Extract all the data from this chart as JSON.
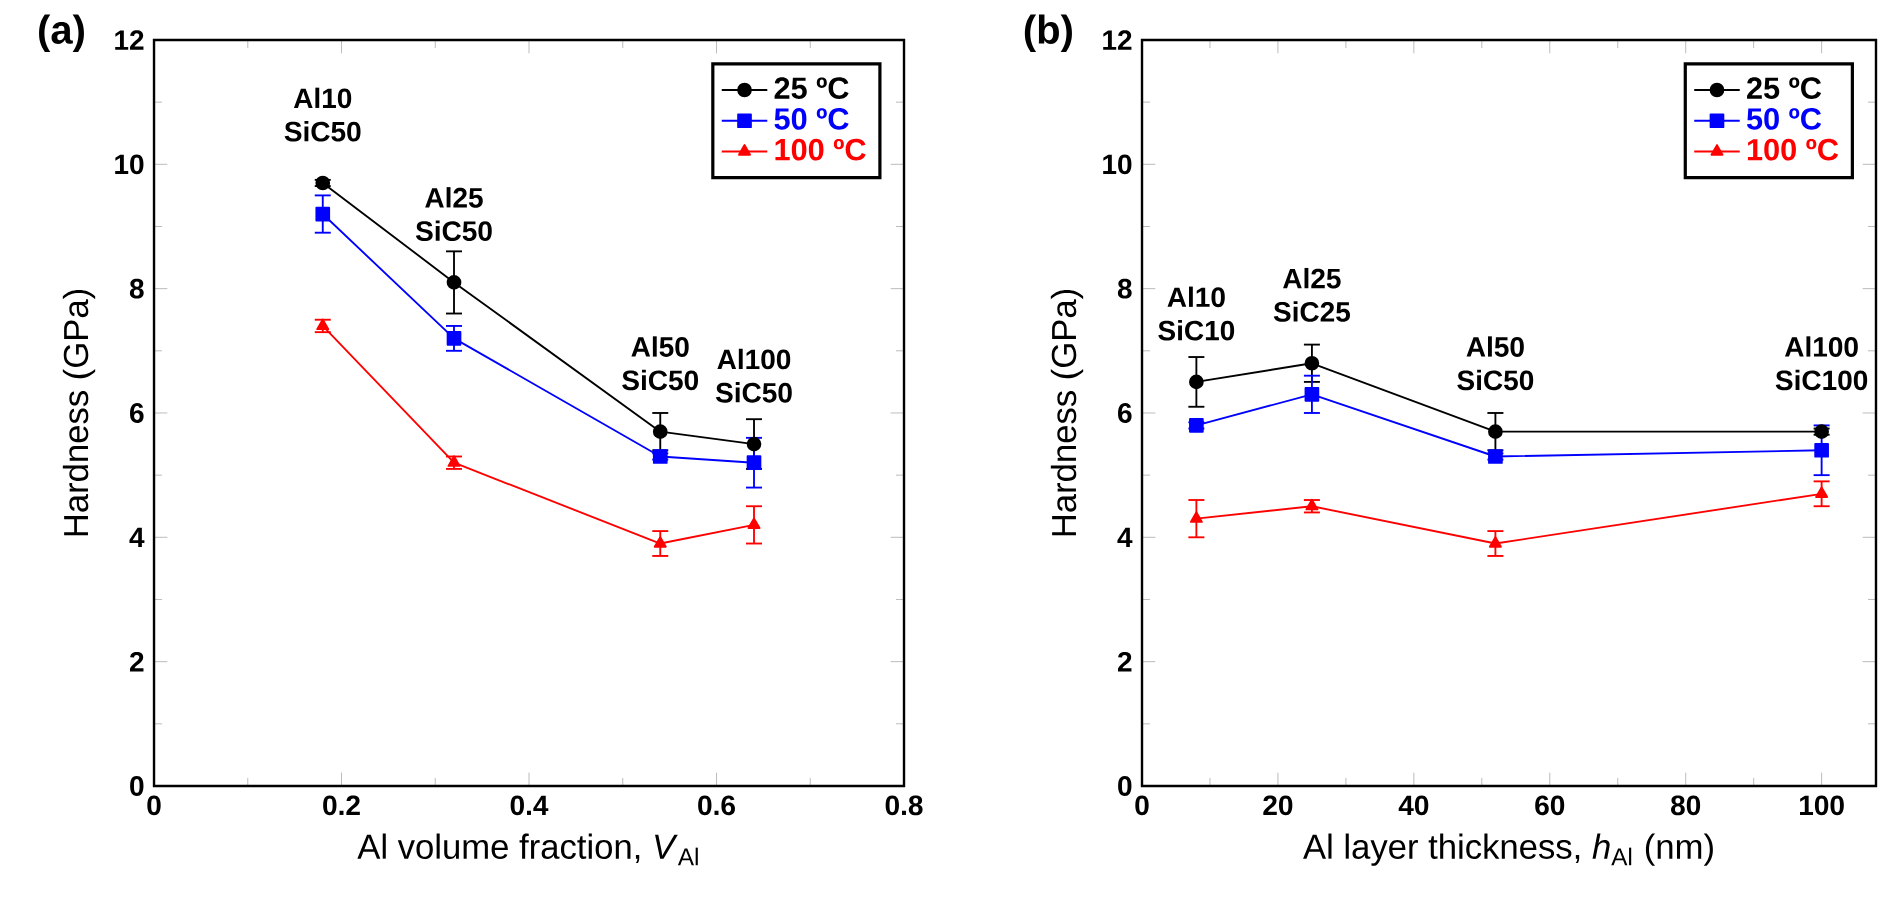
{
  "chart_data": [
    {
      "type": "line",
      "title": "(a)",
      "xlabel": "Al volume fraction, *V*$_{Al}$",
      "ylabel": "Hardness (GPa)",
      "x": [
        0.18,
        0.32,
        0.54,
        0.64
      ],
      "series": [
        {
          "name": "25 ºC",
          "color": "#000000",
          "marker": "circle",
          "values": [
            9.7,
            8.1,
            5.7,
            5.5
          ],
          "errors": [
            0.05,
            0.5,
            0.3,
            0.4
          ]
        },
        {
          "name": "50 ºC",
          "color": "#0000ff",
          "marker": "square",
          "values": [
            9.2,
            7.2,
            5.3,
            5.2
          ],
          "errors": [
            0.3,
            0.2,
            0.05,
            0.4
          ]
        },
        {
          "name": "100 ºC",
          "color": "#ff0000",
          "marker": "triangle",
          "values": [
            7.4,
            5.2,
            3.9,
            4.2
          ],
          "errors": [
            0.1,
            0.1,
            0.2,
            0.3
          ]
        }
      ],
      "xlim": [
        0,
        0.8
      ],
      "xticks": [
        0,
        0.2,
        0.4,
        0.6,
        0.8
      ],
      "ylim": [
        0,
        12
      ],
      "yticks": [
        0,
        2,
        4,
        6,
        8,
        10,
        12
      ],
      "legend": "top right",
      "grid": false,
      "line_style": "solid",
      "annotations": [
        {
          "text": "Al10 SiC50",
          "x": 0.18,
          "y": 9.7
        },
        {
          "text": "Al25 SiC50",
          "x": 0.32,
          "y": 8.1
        },
        {
          "text": "Al50 SiC50",
          "x": 0.54,
          "y": 5.7
        },
        {
          "text": "Al100 SiC50",
          "x": 0.64,
          "y": 5.5
        }
      ]
    },
    {
      "type": "line",
      "title": "(b)",
      "xlabel": "Al layer thickness, *h*$_{Al}$ (nm)",
      "ylabel": "Hardness (GPa)",
      "x": [
        8,
        25,
        52,
        100
      ],
      "series": [
        {
          "name": "25 ºC",
          "color": "#000000",
          "marker": "circle",
          "values": [
            6.5,
            6.8,
            5.7,
            5.7
          ],
          "errors": [
            0.4,
            0.3,
            0.3,
            0.05
          ]
        },
        {
          "name": "50 ºC",
          "color": "#0000ff",
          "marker": "square",
          "values": [
            5.8,
            6.3,
            5.3,
            5.4
          ],
          "errors": [
            0.05,
            0.3,
            0.05,
            0.4
          ]
        },
        {
          "name": "100 ºC",
          "color": "#ff0000",
          "marker": "triangle",
          "values": [
            4.3,
            4.5,
            3.9,
            4.7
          ],
          "errors": [
            0.3,
            0.1,
            0.2,
            0.2
          ]
        }
      ],
      "xlim": [
        0,
        108
      ],
      "xticks": [
        0,
        20,
        40,
        60,
        80,
        100
      ],
      "ylim": [
        0,
        12
      ],
      "yticks": [
        0,
        2,
        4,
        6,
        8,
        10,
        12
      ],
      "legend": "top right",
      "grid": false,
      "line_style": "solid",
      "annotations": [
        {
          "text": "Al10 SiC10",
          "x": 8,
          "y": 6.5
        },
        {
          "text": "Al25 SiC25",
          "x": 25,
          "y": 6.8
        },
        {
          "text": "Al50 SiC50",
          "x": 52,
          "y": 5.7
        },
        {
          "text": "Al100 SiC100",
          "x": 100,
          "y": 5.7
        }
      ]
    }
  ]
}
